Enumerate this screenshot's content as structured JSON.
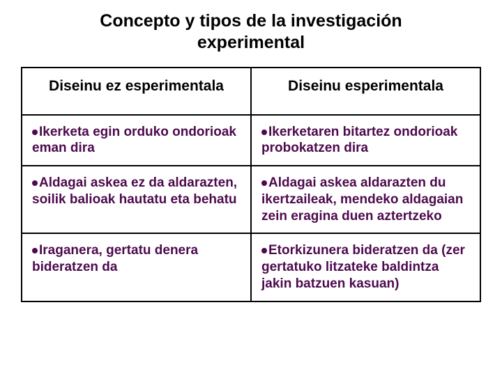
{
  "title": "Concepto y tipos de la investigación experimental",
  "table": {
    "headers": {
      "left": "Diseinu ez esperimentala",
      "right": "Diseinu esperimentala"
    },
    "rows": [
      {
        "left": "Ikerketa egin orduko ondorioak eman dira",
        "right": "Ikerketaren bitartez ondorioak probokatzen dira"
      },
      {
        "left": "Aldagai askea ez da aldarazten, soilik balioak hautatu eta behatu",
        "right": "Aldagai askea aldarazten du ikertzaileak, mendeko aldagaian zein eragina duen aztertzeko"
      },
      {
        "left": "Iraganera, gertatu denera bideratzen da",
        "right": "Etorkizunera bideratzen da (zer gertatuko litzateke baldintza jakin batzuen kasuan)"
      }
    ]
  },
  "colors": {
    "text_primary": "#000000",
    "text_body": "#4d0a4d",
    "bullet": "#4d0a4d",
    "border": "#000000",
    "background": "#ffffff"
  },
  "typography": {
    "title_fontsize": 25,
    "header_fontsize": 21,
    "body_fontsize": 19,
    "font_family": "Arial"
  }
}
